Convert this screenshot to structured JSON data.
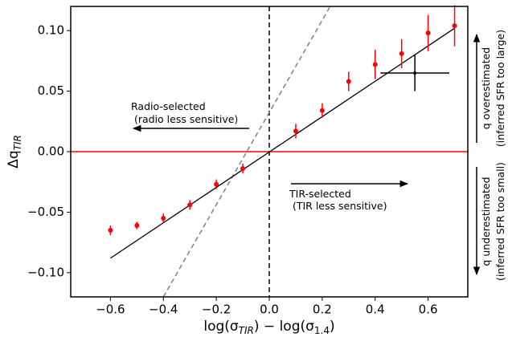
{
  "chart_data": {
    "type": "scatter",
    "xlabel": {
      "main": "log(σ",
      "sub1": "TIR",
      "mid": ") − log(σ",
      "sub2": "1.4",
      "end": ")"
    },
    "ylabel": {
      "main": "Δq",
      "sub": "TIR"
    },
    "xlim": [
      -0.75,
      0.75
    ],
    "ylim": [
      -0.12,
      0.12
    ],
    "xticks": [
      {
        "value": -0.6,
        "label": "−0.6"
      },
      {
        "value": -0.4,
        "label": "−0.4"
      },
      {
        "value": -0.2,
        "label": "−0.2"
      },
      {
        "value": 0,
        "label": "0.0"
      },
      0.2,
      0.4,
      0.6
    ],
    "yticks": [
      {
        "value": -0.1,
        "label": "−0.10"
      },
      {
        "value": -0.05,
        "label": "−0.05"
      },
      {
        "value": 0,
        "label": "0.00"
      },
      0.05,
      {
        "value": 0.1,
        "label": "0.10"
      }
    ],
    "points": {
      "color": "#ff0000",
      "x": [
        -0.6,
        -0.5,
        -0.4,
        -0.3,
        -0.2,
        -0.1,
        0.1,
        0.2,
        0.3,
        0.4,
        0.5,
        0.6,
        0.7
      ],
      "y": [
        -0.065,
        -0.061,
        -0.055,
        -0.044,
        -0.027,
        -0.014,
        0.017,
        0.034,
        0.058,
        0.072,
        0.081,
        0.098,
        0.104
      ],
      "yerr": [
        0.004,
        0.003,
        0.004,
        0.004,
        0.004,
        0.004,
        0.006,
        0.006,
        0.008,
        0.012,
        0.012,
        0.015,
        0.017
      ]
    },
    "mean_point": {
      "color": "#000000",
      "x": 0.55,
      "y": 0.065,
      "xerr": 0.13,
      "yerr": 0.015
    },
    "fit_line": {
      "color": "#000000",
      "x": [
        -0.6,
        0.7
      ],
      "y": [
        -0.088,
        0.102
      ]
    },
    "dashed_line": {
      "color": "#808080",
      "x": [
        -0.4,
        0.23
      ],
      "y": [
        -0.12,
        0.12
      ]
    },
    "hline": {
      "y": 0,
      "color": "#ff0000"
    },
    "vline": {
      "x": 0,
      "color": "#000000"
    },
    "annotations": {
      "radio": [
        "Radio-selected",
        " (radio less sensitive)"
      ],
      "tir": [
        "TIR-selected",
        " (TIR less sensitive)"
      ],
      "over": [
        "q overestimated",
        "(inferred SFR too large)"
      ],
      "under": [
        "q underestimated",
        "(inferred SFR too small)"
      ]
    }
  }
}
